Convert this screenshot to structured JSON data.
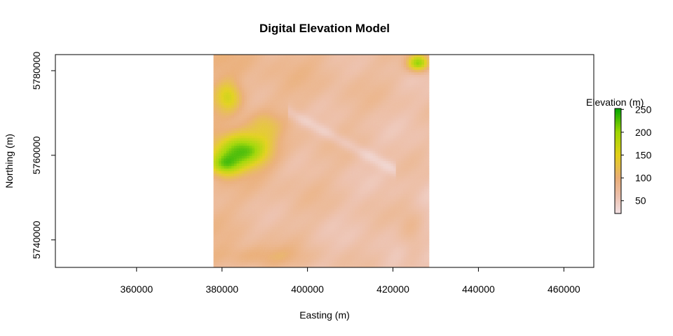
{
  "chart_data": {
    "type": "heatmap",
    "title": "Digital Elevation Model",
    "xlabel": "Easting (m)",
    "ylabel": "Northing (m)",
    "xlim": [
      341000,
      467000
    ],
    "ylim": [
      5733500,
      5783800
    ],
    "x_ticks": [
      360000,
      380000,
      400000,
      420000,
      440000,
      460000
    ],
    "y_ticks": [
      5740000,
      5760000,
      5780000
    ],
    "raster_extent": {
      "x": [
        378000,
        428500
      ],
      "y": [
        5733500,
        5783800
      ]
    },
    "legend": {
      "title": "Elevation (m)",
      "placement": "right",
      "range": [
        22,
        252
      ],
      "ticks": [
        50,
        100,
        150,
        200,
        250
      ]
    },
    "color_stops": [
      {
        "value": 22,
        "color": "#f2e1e4"
      },
      {
        "value": 60,
        "color": "#ecc0ad"
      },
      {
        "value": 100,
        "color": "#eaad76"
      },
      {
        "value": 150,
        "color": "#e2d018"
      },
      {
        "value": 200,
        "color": "#9fd600"
      },
      {
        "value": 252,
        "color": "#00a600"
      }
    ],
    "grid": false
  }
}
